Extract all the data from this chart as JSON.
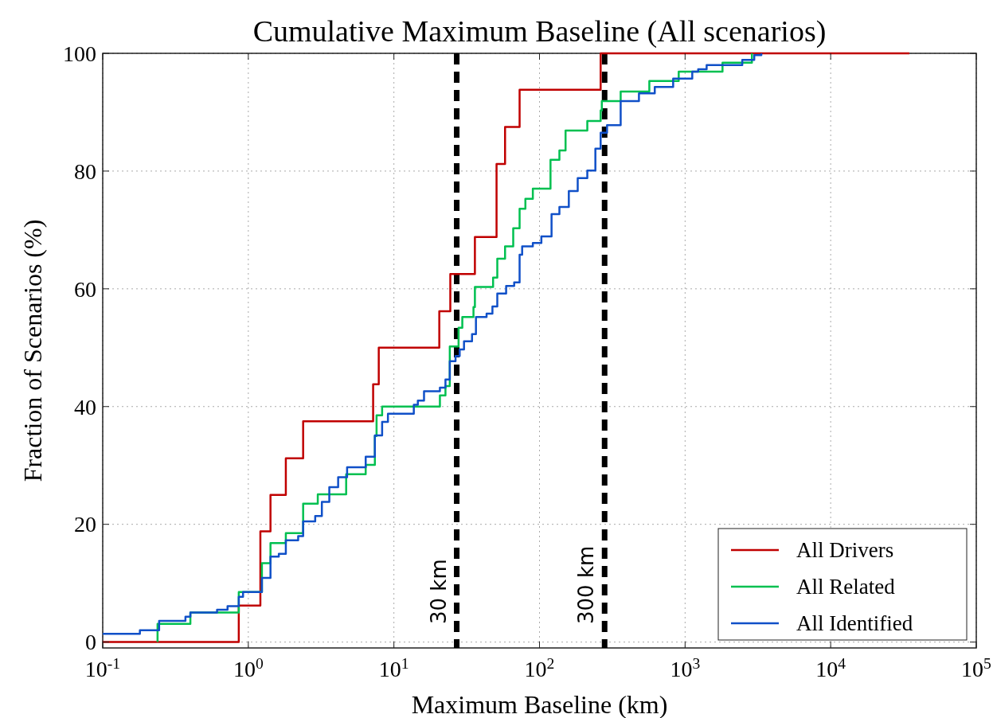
{
  "chart_data": {
    "type": "step",
    "title": "Cumulative Maximum Baseline (All scenarios)",
    "xlabel": "Maximum Baseline (km)",
    "ylabel": "Fraction of Scenarios (%)",
    "log": "x",
    "xlim": [
      0.1,
      100000
    ],
    "ylim": [
      -1,
      100
    ],
    "xticks": [
      {
        "value": 0.1,
        "label": "10$^{-1}$"
      },
      {
        "value": 1,
        "label": "10$^{0}$"
      },
      {
        "value": 10,
        "label": "10$^{1}$"
      },
      {
        "value": 100,
        "label": "10$^{2}$"
      },
      {
        "value": 1000,
        "label": "10$^{3}$"
      },
      {
        "value": 10000,
        "label": "10$^{4}$"
      },
      {
        "value": 100000,
        "label": "10$^{5}$"
      }
    ],
    "yticks": [
      0,
      20,
      40,
      60,
      80,
      100
    ],
    "grid": true,
    "legend": "bottom right",
    "line_style": "solid",
    "marker": "none",
    "ref_lines": [
      {
        "axis": "x",
        "value": 27,
        "label": "30 km",
        "color": "#000000",
        "line_style": "dashed"
      },
      {
        "axis": "x",
        "value": 280,
        "label": "300 km",
        "color": "#000000",
        "line_style": "dashed"
      }
    ],
    "series": [
      {
        "name": "All Drivers",
        "color": "#c00000",
        "x": [
          0.1,
          0.86,
          1.21,
          1.42,
          1.81,
          2.38,
          7.2,
          7.87,
          20.5,
          24.4,
          36,
          50.7,
          58,
          73,
          263,
          34700
        ],
        "values": [
          0,
          6.2,
          18.8,
          25,
          31.2,
          37.5,
          43.8,
          50,
          56.2,
          62.5,
          68.8,
          81.2,
          87.5,
          93.8,
          100,
          100
        ]
      },
      {
        "name": "All Related",
        "color": "#00c050",
        "x": [
          0.238,
          0.238,
          0.4,
          0.86,
          1.24,
          1.42,
          1.81,
          2.38,
          3.0,
          4.7,
          6.4,
          7.4,
          7.6,
          8.3,
          20.7,
          22.6,
          24.2,
          27.8,
          29.5,
          35.2,
          36,
          48,
          51.3,
          58,
          66,
          73,
          80,
          90,
          119,
          137,
          151,
          213,
          263,
          268,
          361,
          568,
          904,
          1807,
          2877
        ],
        "values": [
          0,
          3.1,
          5,
          8.5,
          13.4,
          16.8,
          18.5,
          23.5,
          25.1,
          28.5,
          30.1,
          35,
          38.5,
          40,
          41.9,
          43.5,
          50.2,
          53.4,
          55.2,
          56.9,
          60.3,
          61.9,
          65.1,
          67.2,
          70.3,
          73.6,
          75.3,
          77,
          81.9,
          83.5,
          86.9,
          88.5,
          90.3,
          91.9,
          93.5,
          95.3,
          96.9,
          98.4,
          100
        ]
      },
      {
        "name": "All Identified",
        "color": "#1050c8",
        "x": [
          0.1,
          0.18,
          0.244,
          0.37,
          0.4,
          0.61,
          0.72,
          0.86,
          0.92,
          1.24,
          1.42,
          1.62,
          1.81,
          2.2,
          2.38,
          2.88,
          3.2,
          3.6,
          4.14,
          4.77,
          6.4,
          7.4,
          8.3,
          9.1,
          13.7,
          14.6,
          16.1,
          20.7,
          22.6,
          24.2,
          26.5,
          28.3,
          30.3,
          34.4,
          36.6,
          43.3,
          47.5,
          51.3,
          59,
          67,
          73,
          76,
          90,
          103,
          121,
          137,
          159,
          183,
          213,
          242,
          263,
          291,
          361,
          482,
          619,
          828,
          1120,
          1230,
          1406,
          2470,
          2985,
          3340
        ],
        "values": [
          1.4,
          2,
          3.6,
          4.3,
          5,
          5.5,
          6.1,
          7.7,
          8.5,
          10.9,
          14.5,
          15,
          17.3,
          18,
          20.5,
          21.4,
          23.8,
          26.3,
          28,
          29.7,
          31.5,
          35.1,
          37.4,
          38.8,
          40.3,
          41,
          42.6,
          43.2,
          44.6,
          47.7,
          48.6,
          49.7,
          51.1,
          52.3,
          55.2,
          55.8,
          57,
          59.2,
          60.5,
          61.1,
          65.8,
          67.2,
          67.8,
          68.9,
          72.7,
          73.9,
          76.6,
          78.8,
          80.1,
          83.8,
          86.5,
          87.8,
          91.9,
          93.2,
          94.3,
          95.7,
          96.9,
          97.3,
          98,
          98.9,
          99.7,
          100
        ]
      }
    ]
  }
}
